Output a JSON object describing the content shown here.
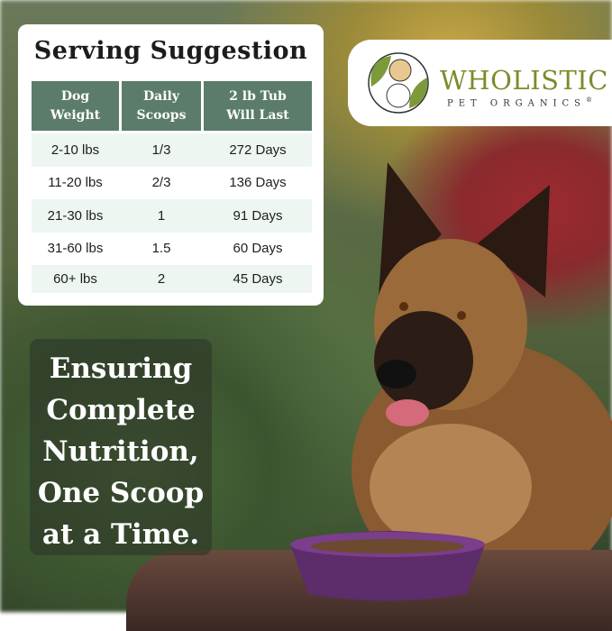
{
  "serving_card": {
    "title": "Serving Suggestion",
    "headers": [
      [
        "Dog",
        "Weight"
      ],
      [
        "Daily",
        "Scoops"
      ],
      [
        "2 lb Tub",
        "Will Last"
      ]
    ],
    "rows": [
      [
        "2-10 lbs",
        "1/3",
        "272 Days"
      ],
      [
        "11-20 lbs",
        "2/3",
        "136 Days"
      ],
      [
        "21-30 lbs",
        "1",
        "91 Days"
      ],
      [
        "31-60 lbs",
        "1.5",
        "60 Days"
      ],
      [
        "60+ lbs",
        "2",
        "45 Days"
      ]
    ],
    "header_color": "#5b7c6b",
    "stripe_color": "#eef6f1"
  },
  "logo": {
    "brand": "WHOLISTIC",
    "subtitle": "PET ORGANICS",
    "mark": "®",
    "color": "#7c8c2c"
  },
  "tagline": {
    "lines": [
      "Ensuring",
      "Complete",
      "Nutrition,",
      "One Scoop",
      "at a Time."
    ]
  },
  "photo": {
    "subject": "german-shepherd-with-purple-bowl"
  }
}
